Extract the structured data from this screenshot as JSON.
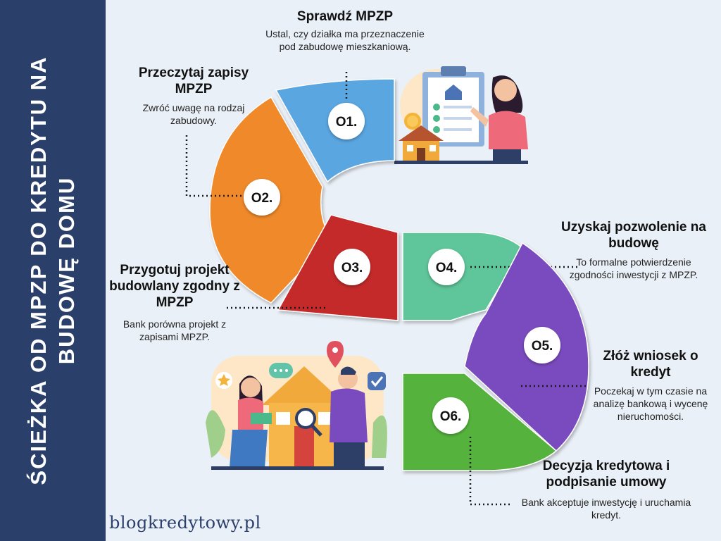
{
  "banner": {
    "title": "ŚCIEŻKA OD MPZP DO KREDYTU NA BUDOWĘ DOMU"
  },
  "brand": {
    "text": "blogkredytowy.pl"
  },
  "steps": [
    {
      "number": "O1.",
      "title": "Sprawdź MPZP",
      "description": "Ustal, czy działka ma przeznaczenie pod zabudowę mieszkaniową.",
      "color": "#5aa6e1"
    },
    {
      "number": "O2.",
      "title": "Przeczytaj zapisy MPZP",
      "description": "Zwróć uwagę na rodzaj zabudowy.",
      "color": "#f0892b"
    },
    {
      "number": "O3.",
      "title": "Przygotuj projekt budowlany zgodny z MPZP",
      "description": "Bank porówna projekt z zapisami MPZP.",
      "color": "#c42a2a"
    },
    {
      "number": "O4.",
      "title": "Uzyskaj pozwolenie na budowę",
      "description": "To formalne potwierdzenie zgodności inwestycji z MPZP.",
      "color": "#5ec59a"
    },
    {
      "number": "O5.",
      "title": "Złóż wniosek o kredyt",
      "description": "Poczekaj w tym czasie na analizę bankową i wycenę nieruchomości.",
      "color": "#7a4bbf"
    },
    {
      "number": "O6.",
      "title": "Decyzja kredytowa i podpisanie umowy",
      "description": "Bank akceptuje inwestycję i uruchamia kredyt.",
      "color": "#55b33c"
    }
  ],
  "icons": [
    "house-icon",
    "map-pin-icon",
    "checkmark-icon",
    "star-icon",
    "chat-bubble-icon",
    "coin-icon",
    "magnifier-icon",
    "clipboard-icon"
  ]
}
